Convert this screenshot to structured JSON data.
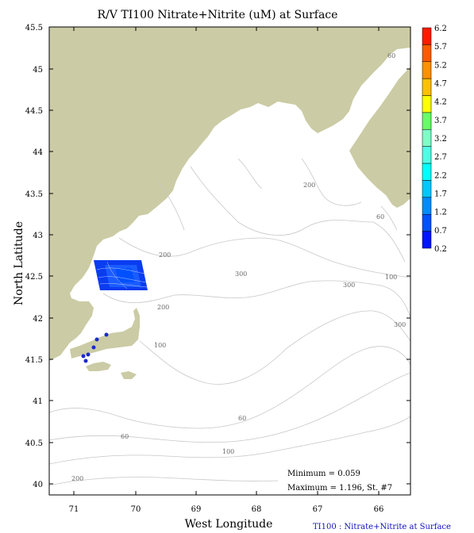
{
  "map": {
    "title": "R/V TI100 Nitrate+Nitrite (uM) at Surface",
    "xlabel": "West Longitude",
    "ylabel": "North Latitude",
    "caption": "TI100 : Nitrate+Nitrite at Surface",
    "stats": {
      "minimum": "Minimum = 0.059",
      "maximum": "Maximum = 1.196, St. #7"
    },
    "x_ticks": [
      "71",
      "70",
      "69",
      "68",
      "67",
      "66"
    ],
    "y_ticks": [
      "45.5",
      "45",
      "44.5",
      "44",
      "43.5",
      "43",
      "42.5",
      "42",
      "41.5",
      "41",
      "40.5",
      "40"
    ],
    "contour_labels": [
      "60",
      "200",
      "60",
      "200",
      "300",
      "100",
      "200",
      "100",
      "300",
      "300",
      "60",
      "60",
      "100",
      "200"
    ],
    "colors": {
      "land": "#cbcba5",
      "contour": "#c8c8c8",
      "station": "#1a2bc8",
      "caption": "#1010c0"
    }
  },
  "colorbar": {
    "labels": [
      "6.2",
      "5.7",
      "5.2",
      "4.7",
      "4.2",
      "3.7",
      "3.2",
      "2.7",
      "2.2",
      "1.7",
      "1.2",
      "0.7",
      "0.2"
    ],
    "colors": [
      "#ff1a00",
      "#ff5a00",
      "#ff9000",
      "#ffc000",
      "#ffff00",
      "#66ff66",
      "#7dffc8",
      "#4dffe6",
      "#00ffff",
      "#00c8ff",
      "#008cff",
      "#0050ff",
      "#0014ff"
    ]
  }
}
